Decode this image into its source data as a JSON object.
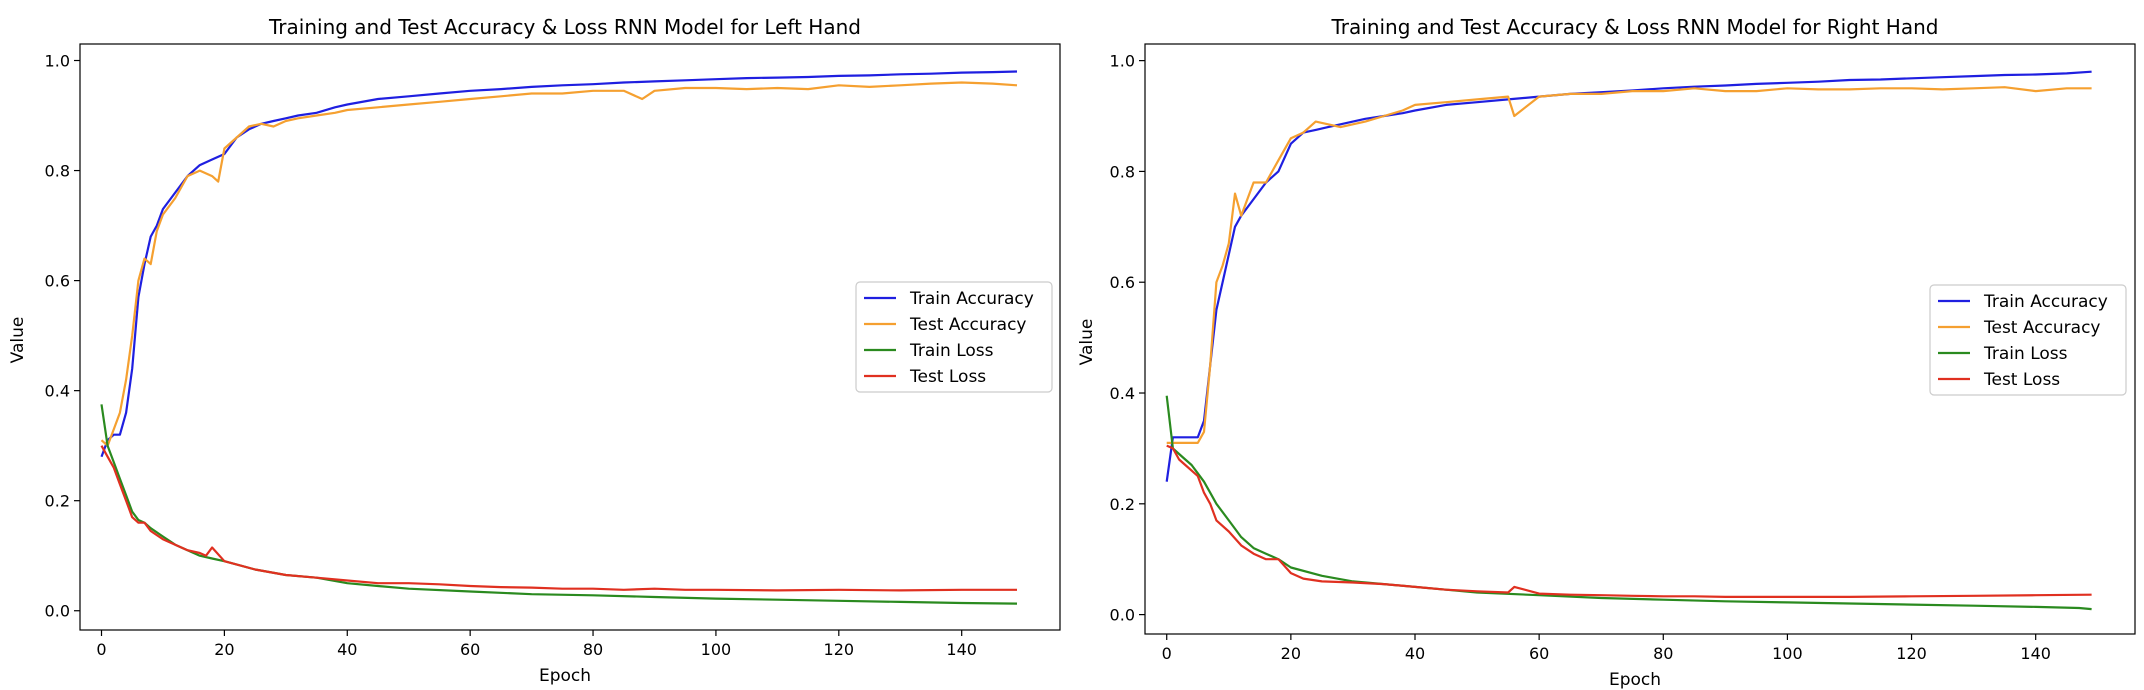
{
  "chart_data": [
    {
      "type": "line",
      "title": "Training and Test Accuracy & Loss RNN Model for Left Hand",
      "xlabel": "Epoch",
      "ylabel": "Value",
      "xlim": [
        -3.5,
        156
      ],
      "ylim": [
        -0.035,
        1.03
      ],
      "xticks": [
        0,
        20,
        40,
        60,
        80,
        100,
        120,
        140
      ],
      "yticks": [
        0.0,
        0.2,
        0.4,
        0.6,
        0.8,
        1.0
      ],
      "legend_position": "center-right",
      "grid": false,
      "series": [
        {
          "name": "Train Accuracy",
          "color": "#1f1fe0",
          "x": [
            0,
            1,
            2,
            3,
            4,
            5,
            6,
            7,
            8,
            9,
            10,
            12,
            14,
            16,
            18,
            20,
            22,
            24,
            26,
            28,
            30,
            32,
            35,
            38,
            40,
            45,
            50,
            55,
            60,
            65,
            70,
            75,
            80,
            85,
            90,
            95,
            100,
            105,
            110,
            115,
            120,
            125,
            130,
            135,
            140,
            145,
            149
          ],
          "values": [
            0.28,
            0.31,
            0.32,
            0.32,
            0.36,
            0.44,
            0.57,
            0.63,
            0.68,
            0.7,
            0.73,
            0.76,
            0.79,
            0.81,
            0.82,
            0.83,
            0.86,
            0.875,
            0.885,
            0.89,
            0.895,
            0.9,
            0.905,
            0.915,
            0.92,
            0.93,
            0.935,
            0.94,
            0.945,
            0.948,
            0.952,
            0.955,
            0.957,
            0.96,
            0.962,
            0.964,
            0.966,
            0.968,
            0.969,
            0.97,
            0.972,
            0.973,
            0.975,
            0.976,
            0.978,
            0.979,
            0.98
          ]
        },
        {
          "name": "Test Accuracy",
          "color": "#f5a030",
          "x": [
            0,
            1,
            2,
            3,
            4,
            5,
            6,
            7,
            8,
            9,
            10,
            12,
            14,
            16,
            18,
            19,
            20,
            22,
            24,
            26,
            28,
            30,
            32,
            35,
            38,
            40,
            45,
            50,
            55,
            60,
            65,
            70,
            75,
            80,
            85,
            88,
            90,
            95,
            100,
            105,
            110,
            115,
            120,
            125,
            130,
            135,
            140,
            145,
            149
          ],
          "values": [
            0.31,
            0.3,
            0.33,
            0.36,
            0.42,
            0.5,
            0.6,
            0.64,
            0.63,
            0.69,
            0.72,
            0.75,
            0.79,
            0.8,
            0.79,
            0.78,
            0.84,
            0.86,
            0.88,
            0.885,
            0.88,
            0.89,
            0.895,
            0.9,
            0.905,
            0.91,
            0.915,
            0.92,
            0.925,
            0.93,
            0.935,
            0.94,
            0.94,
            0.945,
            0.945,
            0.93,
            0.945,
            0.95,
            0.95,
            0.948,
            0.95,
            0.948,
            0.955,
            0.952,
            0.955,
            0.958,
            0.96,
            0.958,
            0.955
          ]
        },
        {
          "name": "Train Loss",
          "color": "#2a8a1f",
          "x": [
            0,
            1,
            2,
            3,
            4,
            5,
            6,
            7,
            8,
            10,
            12,
            14,
            16,
            18,
            20,
            25,
            30,
            35,
            40,
            45,
            50,
            60,
            70,
            80,
            90,
            100,
            110,
            120,
            130,
            140,
            149
          ],
          "values": [
            0.375,
            0.3,
            0.27,
            0.24,
            0.21,
            0.18,
            0.165,
            0.16,
            0.15,
            0.135,
            0.12,
            0.11,
            0.1,
            0.095,
            0.09,
            0.075,
            0.065,
            0.06,
            0.05,
            0.045,
            0.04,
            0.035,
            0.03,
            0.028,
            0.025,
            0.022,
            0.02,
            0.018,
            0.016,
            0.014,
            0.013
          ]
        },
        {
          "name": "Test Loss",
          "color": "#e03020",
          "x": [
            0,
            1,
            2,
            3,
            4,
            5,
            6,
            7,
            8,
            10,
            12,
            14,
            16,
            17,
            18,
            20,
            25,
            30,
            35,
            40,
            45,
            50,
            55,
            60,
            65,
            70,
            75,
            80,
            85,
            90,
            95,
            100,
            110,
            120,
            130,
            140,
            149
          ],
          "values": [
            0.3,
            0.28,
            0.26,
            0.23,
            0.2,
            0.17,
            0.16,
            0.16,
            0.145,
            0.13,
            0.12,
            0.11,
            0.105,
            0.1,
            0.115,
            0.09,
            0.075,
            0.065,
            0.06,
            0.055,
            0.05,
            0.05,
            0.048,
            0.045,
            0.043,
            0.042,
            0.04,
            0.04,
            0.038,
            0.04,
            0.038,
            0.038,
            0.037,
            0.038,
            0.037,
            0.038,
            0.038
          ]
        }
      ]
    },
    {
      "type": "line",
      "title": "Training and Test Accuracy & Loss RNN Model for Right Hand",
      "xlabel": "Epoch",
      "ylabel": "Value",
      "xlim": [
        -3.5,
        156
      ],
      "ylim": [
        -0.035,
        1.03
      ],
      "xticks": [
        0,
        20,
        40,
        60,
        80,
        100,
        120,
        140
      ],
      "yticks": [
        0.0,
        0.2,
        0.4,
        0.6,
        0.8,
        1.0
      ],
      "legend_position": "center-right",
      "grid": false,
      "series": [
        {
          "name": "Train Accuracy",
          "color": "#1f1fe0",
          "x": [
            0,
            1,
            2,
            3,
            4,
            5,
            6,
            7,
            8,
            9,
            10,
            11,
            12,
            14,
            16,
            18,
            20,
            22,
            24,
            26,
            28,
            30,
            32,
            35,
            38,
            40,
            45,
            50,
            55,
            60,
            65,
            70,
            75,
            80,
            85,
            90,
            95,
            100,
            105,
            110,
            115,
            120,
            125,
            130,
            135,
            140,
            145,
            149
          ],
          "values": [
            0.24,
            0.32,
            0.32,
            0.32,
            0.32,
            0.32,
            0.35,
            0.45,
            0.55,
            0.6,
            0.65,
            0.7,
            0.72,
            0.75,
            0.78,
            0.8,
            0.85,
            0.87,
            0.875,
            0.88,
            0.885,
            0.89,
            0.895,
            0.9,
            0.905,
            0.91,
            0.92,
            0.925,
            0.93,
            0.935,
            0.94,
            0.943,
            0.946,
            0.95,
            0.953,
            0.955,
            0.958,
            0.96,
            0.962,
            0.965,
            0.966,
            0.968,
            0.97,
            0.972,
            0.974,
            0.975,
            0.977,
            0.98
          ]
        },
        {
          "name": "Test Accuracy",
          "color": "#f5a030",
          "x": [
            0,
            1,
            2,
            3,
            4,
            5,
            6,
            7,
            8,
            9,
            10,
            11,
            12,
            14,
            16,
            17,
            18,
            20,
            22,
            24,
            26,
            28,
            30,
            32,
            35,
            38,
            40,
            45,
            50,
            55,
            56,
            60,
            65,
            70,
            75,
            80,
            85,
            90,
            95,
            100,
            105,
            110,
            115,
            120,
            125,
            130,
            135,
            140,
            145,
            149
          ],
          "values": [
            0.31,
            0.31,
            0.31,
            0.31,
            0.31,
            0.31,
            0.33,
            0.45,
            0.6,
            0.63,
            0.67,
            0.76,
            0.72,
            0.78,
            0.78,
            0.8,
            0.82,
            0.86,
            0.87,
            0.89,
            0.885,
            0.88,
            0.885,
            0.89,
            0.9,
            0.91,
            0.92,
            0.925,
            0.93,
            0.935,
            0.9,
            0.935,
            0.94,
            0.94,
            0.945,
            0.945,
            0.95,
            0.945,
            0.945,
            0.95,
            0.948,
            0.948,
            0.95,
            0.95,
            0.948,
            0.95,
            0.952,
            0.945,
            0.95,
            0.95
          ]
        },
        {
          "name": "Train Loss",
          "color": "#2a8a1f",
          "x": [
            0,
            1,
            2,
            3,
            4,
            5,
            6,
            7,
            8,
            10,
            12,
            14,
            16,
            18,
            20,
            25,
            30,
            35,
            40,
            45,
            50,
            60,
            70,
            80,
            90,
            100,
            110,
            120,
            130,
            140,
            147,
            149
          ],
          "values": [
            0.395,
            0.3,
            0.29,
            0.28,
            0.27,
            0.255,
            0.24,
            0.22,
            0.2,
            0.17,
            0.14,
            0.12,
            0.11,
            0.1,
            0.085,
            0.07,
            0.06,
            0.055,
            0.05,
            0.045,
            0.04,
            0.035,
            0.03,
            0.027,
            0.024,
            0.022,
            0.02,
            0.018,
            0.016,
            0.014,
            0.012,
            0.01
          ]
        },
        {
          "name": "Test Loss",
          "color": "#e03020",
          "x": [
            0,
            1,
            2,
            3,
            4,
            5,
            6,
            7,
            8,
            10,
            12,
            14,
            16,
            18,
            20,
            22,
            25,
            30,
            35,
            40,
            45,
            50,
            55,
            56,
            60,
            65,
            70,
            75,
            80,
            85,
            90,
            95,
            100,
            110,
            120,
            130,
            140,
            149
          ],
          "values": [
            0.305,
            0.3,
            0.28,
            0.27,
            0.26,
            0.25,
            0.22,
            0.2,
            0.17,
            0.15,
            0.125,
            0.11,
            0.1,
            0.1,
            0.075,
            0.065,
            0.06,
            0.058,
            0.055,
            0.05,
            0.045,
            0.042,
            0.04,
            0.05,
            0.038,
            0.036,
            0.035,
            0.034,
            0.033,
            0.033,
            0.032,
            0.032,
            0.032,
            0.032,
            0.033,
            0.034,
            0.035,
            0.036
          ]
        }
      ]
    }
  ]
}
